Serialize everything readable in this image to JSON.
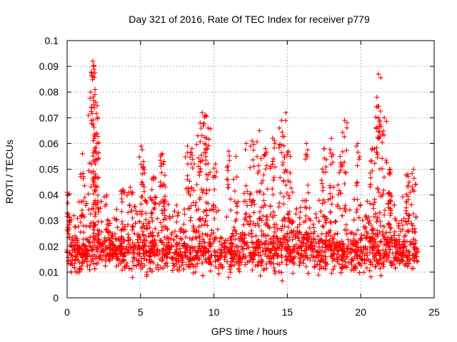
{
  "chart_data": {
    "type": "scatter",
    "title": "Day 321 of 2016, Rate Of TEC Index for receiver p779",
    "xlabel": "GPS time / hours",
    "ylabel": "ROTI / TECUs",
    "xlim": [
      0,
      25
    ],
    "ylim": [
      0,
      0.1
    ],
    "xticks": [
      0,
      5,
      10,
      15,
      20,
      25
    ],
    "yticks": [
      0,
      0.01,
      0.02,
      0.03,
      0.04,
      0.05,
      0.06,
      0.07,
      0.08,
      0.09,
      0.1
    ],
    "xtick_labels": [
      "0",
      "5",
      "10",
      "15",
      "20",
      "25"
    ],
    "ytick_labels": [
      "0",
      "0.01",
      "0.02",
      "0.03",
      "0.04",
      "0.05",
      "0.06",
      "0.07",
      "0.08",
      "0.09",
      "0.1"
    ],
    "grid": true,
    "marker": "+",
    "series": [
      {
        "name": "ROTI",
        "color": "#ff0000",
        "x_range": [
          0,
          23.9
        ],
        "typical_range": [
          0.005,
          0.03
        ],
        "peaks": [
          {
            "x": 0.0,
            "y": 0.041
          },
          {
            "x": 1.05,
            "y": 0.056
          },
          {
            "x": 1.6,
            "y": 0.08
          },
          {
            "x": 1.75,
            "y": 0.092
          },
          {
            "x": 1.8,
            "y": 0.09
          },
          {
            "x": 1.9,
            "y": 0.081
          },
          {
            "x": 1.95,
            "y": 0.076
          },
          {
            "x": 2.0,
            "y": 0.064
          },
          {
            "x": 2.05,
            "y": 0.06
          },
          {
            "x": 2.7,
            "y": 0.04
          },
          {
            "x": 3.8,
            "y": 0.042
          },
          {
            "x": 4.3,
            "y": 0.043
          },
          {
            "x": 5.05,
            "y": 0.059
          },
          {
            "x": 5.2,
            "y": 0.053
          },
          {
            "x": 5.9,
            "y": 0.047
          },
          {
            "x": 6.5,
            "y": 0.056
          },
          {
            "x": 6.6,
            "y": 0.053
          },
          {
            "x": 8.2,
            "y": 0.059
          },
          {
            "x": 8.5,
            "y": 0.058
          },
          {
            "x": 8.9,
            "y": 0.063
          },
          {
            "x": 9.2,
            "y": 0.072
          },
          {
            "x": 9.4,
            "y": 0.071
          },
          {
            "x": 9.6,
            "y": 0.066
          },
          {
            "x": 10.1,
            "y": 0.052
          },
          {
            "x": 11.0,
            "y": 0.057
          },
          {
            "x": 11.5,
            "y": 0.055
          },
          {
            "x": 12.2,
            "y": 0.06
          },
          {
            "x": 12.6,
            "y": 0.061
          },
          {
            "x": 13.1,
            "y": 0.065
          },
          {
            "x": 13.5,
            "y": 0.058
          },
          {
            "x": 14.0,
            "y": 0.062
          },
          {
            "x": 14.6,
            "y": 0.069
          },
          {
            "x": 14.9,
            "y": 0.072
          },
          {
            "x": 15.2,
            "y": 0.055
          },
          {
            "x": 16.3,
            "y": 0.06
          },
          {
            "x": 17.5,
            "y": 0.058
          },
          {
            "x": 18.0,
            "y": 0.062
          },
          {
            "x": 18.6,
            "y": 0.055
          },
          {
            "x": 18.9,
            "y": 0.069
          },
          {
            "x": 19.8,
            "y": 0.06
          },
          {
            "x": 20.8,
            "y": 0.058
          },
          {
            "x": 21.1,
            "y": 0.078
          },
          {
            "x": 21.2,
            "y": 0.087
          },
          {
            "x": 21.3,
            "y": 0.069
          },
          {
            "x": 21.6,
            "y": 0.07
          },
          {
            "x": 22.0,
            "y": 0.05
          },
          {
            "x": 23.2,
            "y": 0.048
          },
          {
            "x": 23.6,
            "y": 0.05
          }
        ]
      }
    ]
  }
}
